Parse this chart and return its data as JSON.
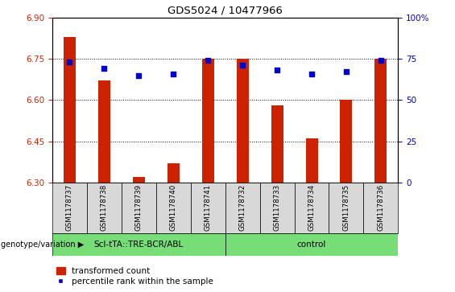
{
  "title": "GDS5024 / 10477966",
  "samples": [
    "GSM1178737",
    "GSM1178738",
    "GSM1178739",
    "GSM1178740",
    "GSM1178741",
    "GSM1178732",
    "GSM1178733",
    "GSM1178734",
    "GSM1178735",
    "GSM1178736"
  ],
  "transformed_count": [
    6.83,
    6.67,
    6.32,
    6.37,
    6.75,
    6.75,
    6.58,
    6.46,
    6.6,
    6.75
  ],
  "percentile_rank": [
    73,
    69,
    65,
    66,
    74,
    71,
    68,
    66,
    67,
    74
  ],
  "ylim_left": [
    6.3,
    6.9
  ],
  "ylim_right": [
    0,
    100
  ],
  "yticks_left": [
    6.3,
    6.45,
    6.6,
    6.75,
    6.9
  ],
  "yticks_right": [
    0,
    25,
    50,
    75,
    100
  ],
  "bar_color": "#cc2200",
  "dot_color": "#0000cc",
  "group1_label": "Scl-tTA::TRE-BCR/ABL",
  "group2_label": "control",
  "group1_indices": [
    0,
    1,
    2,
    3,
    4
  ],
  "group2_indices": [
    5,
    6,
    7,
    8,
    9
  ],
  "group_color": "#77dd77",
  "xlabel_left": "genotype/variation",
  "legend_bar": "transformed count",
  "legend_dot": "percentile rank within the sample",
  "tick_color_left": "#cc2200",
  "tick_color_right": "#0000cc",
  "bar_width": 0.35,
  "bar_bottom": 6.3,
  "bg_color": "#d8d8d8"
}
